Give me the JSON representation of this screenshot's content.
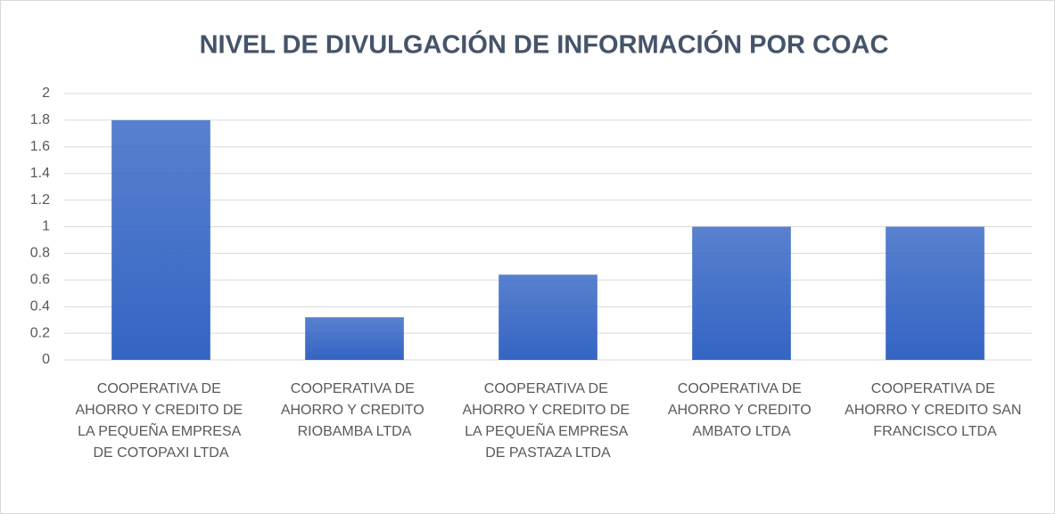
{
  "chart_data": {
    "type": "bar",
    "title": "NIVEL DE DIVULGACIÓN DE INFORMACIÓN POR COAC",
    "categories": [
      "COOPERATIVA DE AHORRO Y CREDITO DE LA PEQUEÑA EMPRESA DE COTOPAXI LTDA",
      "COOPERATIVA DE AHORRO Y CREDITO RIOBAMBA LTDA",
      "COOPERATIVA DE AHORRO Y CREDITO DE LA PEQUEÑA EMPRESA DE PASTAZA LTDA",
      "COOPERATIVA DE AHORRO Y CREDITO AMBATO LTDA",
      "COOPERATIVA DE AHORRO Y CREDITO SAN FRANCISCO LTDA"
    ],
    "values": [
      1.8,
      0.32,
      0.64,
      1,
      1
    ],
    "color": "#3465c4",
    "ylim": [
      0,
      2
    ],
    "yticks": [
      0,
      0.2,
      0.4,
      0.6,
      0.8,
      1,
      1.2,
      1.4,
      1.6,
      1.8,
      2
    ],
    "grid": true
  }
}
